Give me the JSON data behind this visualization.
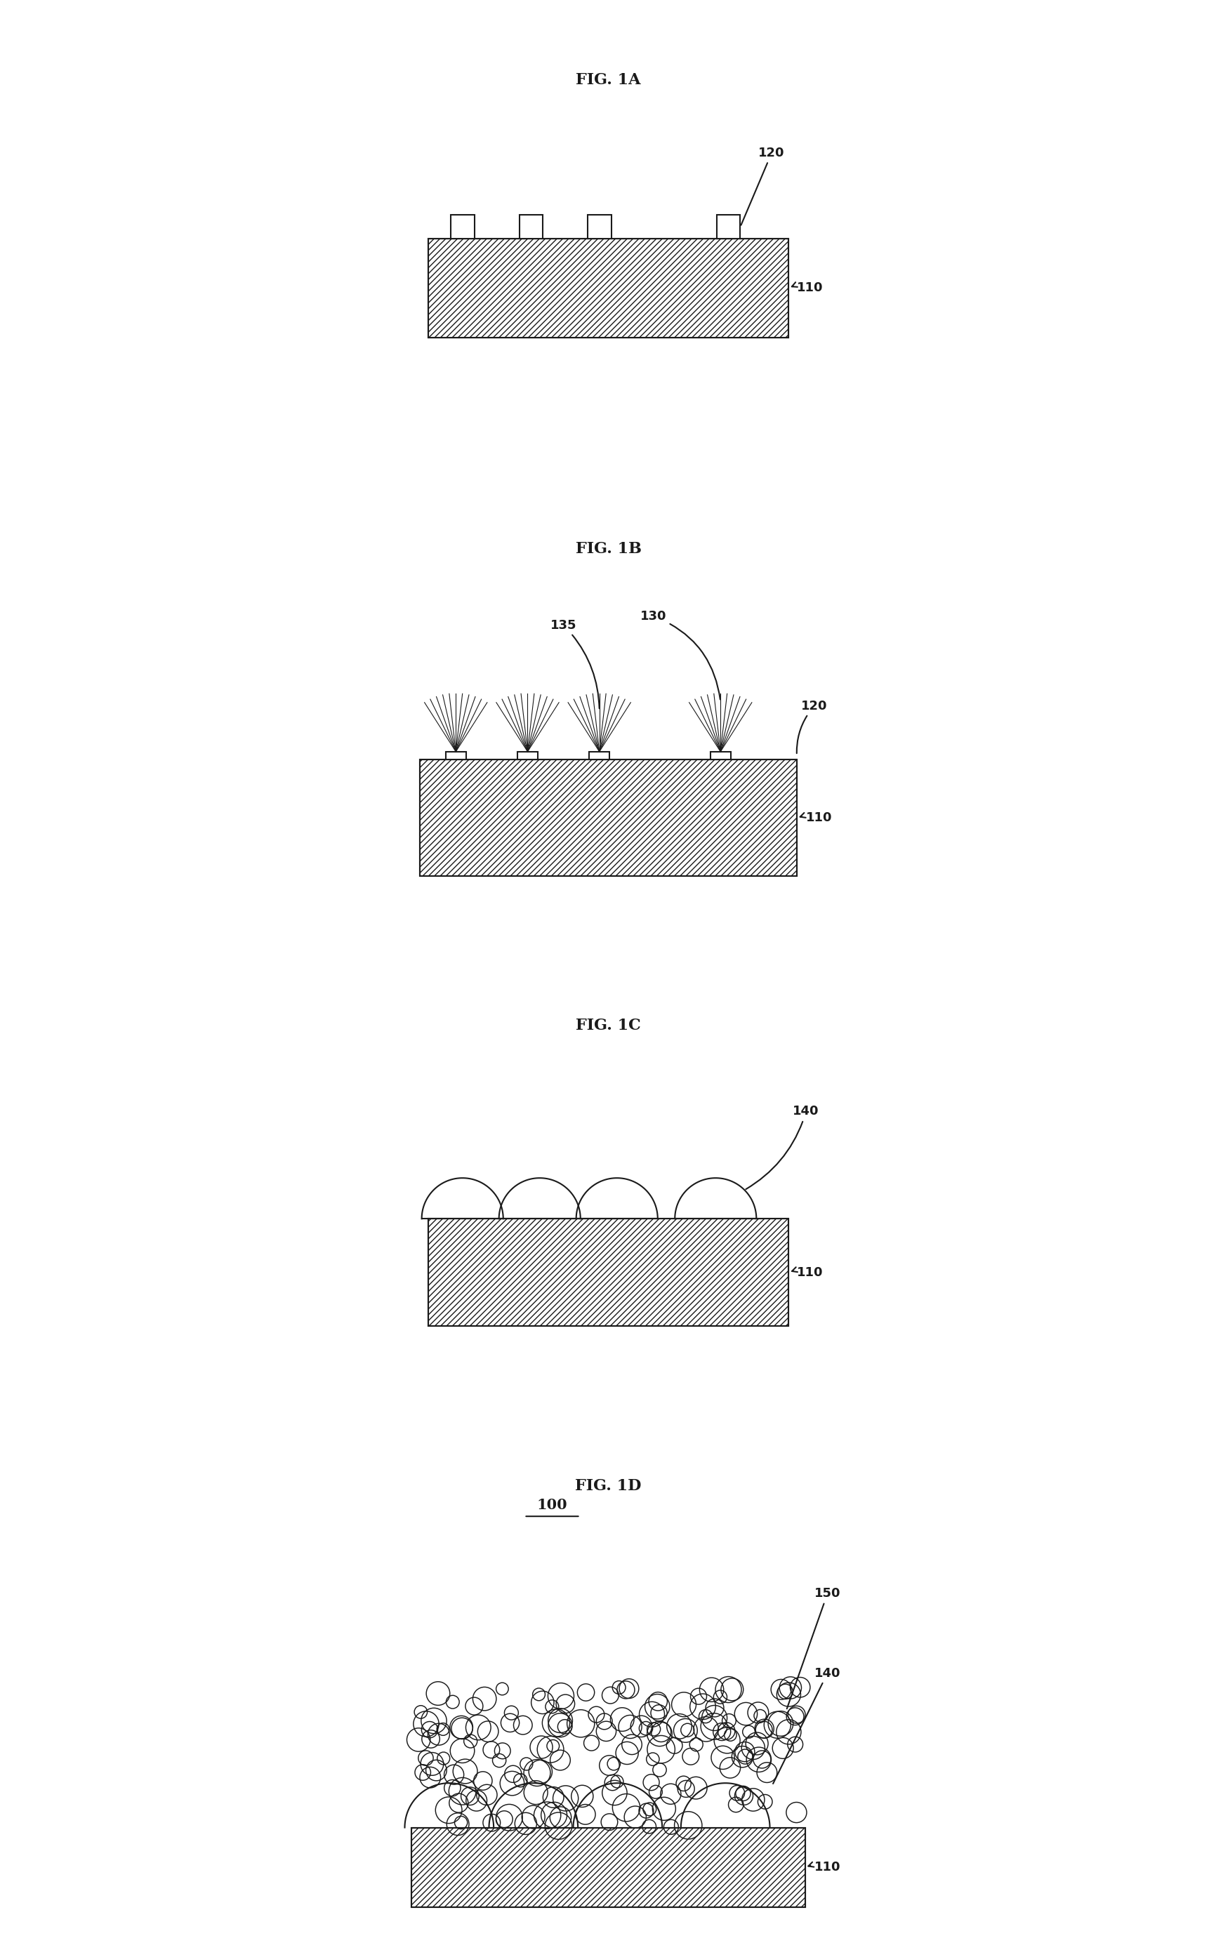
{
  "fig_width": 17.33,
  "fig_height": 27.78,
  "bg_color": "#ffffff",
  "line_color": "#1a1a1a",
  "hatch_color": "#555555",
  "fig1a_title": "FIG. 1A",
  "fig1b_title": "FIG. 1B",
  "fig1c_title": "FIG. 1C",
  "fig1d_title": "FIG. 1D",
  "label_110": "110",
  "label_120": "120",
  "label_130": "130",
  "label_135": "135",
  "label_140": "140",
  "label_150": "150",
  "label_100": "100"
}
